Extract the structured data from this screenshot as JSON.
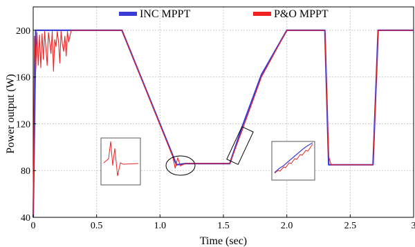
{
  "chart_data": {
    "type": "line",
    "xlabel": "Time (sec)",
    "ylabel": "Power output (W)",
    "xlim": [
      0,
      3
    ],
    "ylim": [
      40,
      220
    ],
    "xticks": [
      0,
      0.5,
      1.0,
      1.5,
      2.0,
      2.5,
      3
    ],
    "xtick_labels": [
      "0",
      "0.5",
      "1.0",
      "1.5",
      "2.0",
      "2.5",
      "3"
    ],
    "yticks": [
      40,
      80,
      120,
      160,
      200
    ],
    "ytick_labels": [
      "40",
      "80",
      "120",
      "160",
      "200"
    ],
    "grid": true,
    "legend_position": "top",
    "series": [
      {
        "name": "INC MPPT",
        "color": "#3b3bd6",
        "x": [
          0,
          0.02,
          0.05,
          0.1,
          0.3,
          0.6,
          0.7,
          1.1,
          1.13,
          1.2,
          1.5,
          1.55,
          1.65,
          1.8,
          2.0,
          2.3,
          2.33,
          2.35,
          2.68,
          2.72,
          3.0
        ],
        "y": [
          40,
          200,
          200,
          200,
          200,
          200,
          200,
          93,
          85,
          86,
          86,
          86,
          118,
          162,
          200,
          200,
          85,
          85,
          85,
          200,
          200
        ]
      },
      {
        "name": "P&O MPPT",
        "color": "#ee2222",
        "x": [
          0,
          0.01,
          0.02,
          0.03,
          0.04,
          0.05,
          0.06,
          0.07,
          0.08,
          0.09,
          0.1,
          0.11,
          0.12,
          0.13,
          0.14,
          0.15,
          0.16,
          0.17,
          0.18,
          0.19,
          0.2,
          0.21,
          0.22,
          0.23,
          0.24,
          0.25,
          0.26,
          0.27,
          0.28,
          0.3,
          0.6,
          0.7,
          1.1,
          1.12,
          1.14,
          1.16,
          1.2,
          1.5,
          1.55,
          1.65,
          1.8,
          2.0,
          2.3,
          2.33,
          2.35,
          2.68,
          2.7,
          2.72,
          3.0
        ],
        "y": [
          40,
          195,
          165,
          198,
          170,
          196,
          168,
          197,
          175,
          199,
          185,
          170,
          198,
          190,
          180,
          199,
          165,
          192,
          186,
          199,
          190,
          172,
          199,
          188,
          182,
          195,
          178,
          199,
          190,
          200,
          200,
          200,
          92,
          82,
          91,
          84,
          86,
          86,
          86,
          115,
          160,
          200,
          200,
          92,
          85,
          85,
          140,
          200,
          200
        ]
      }
    ]
  }
}
